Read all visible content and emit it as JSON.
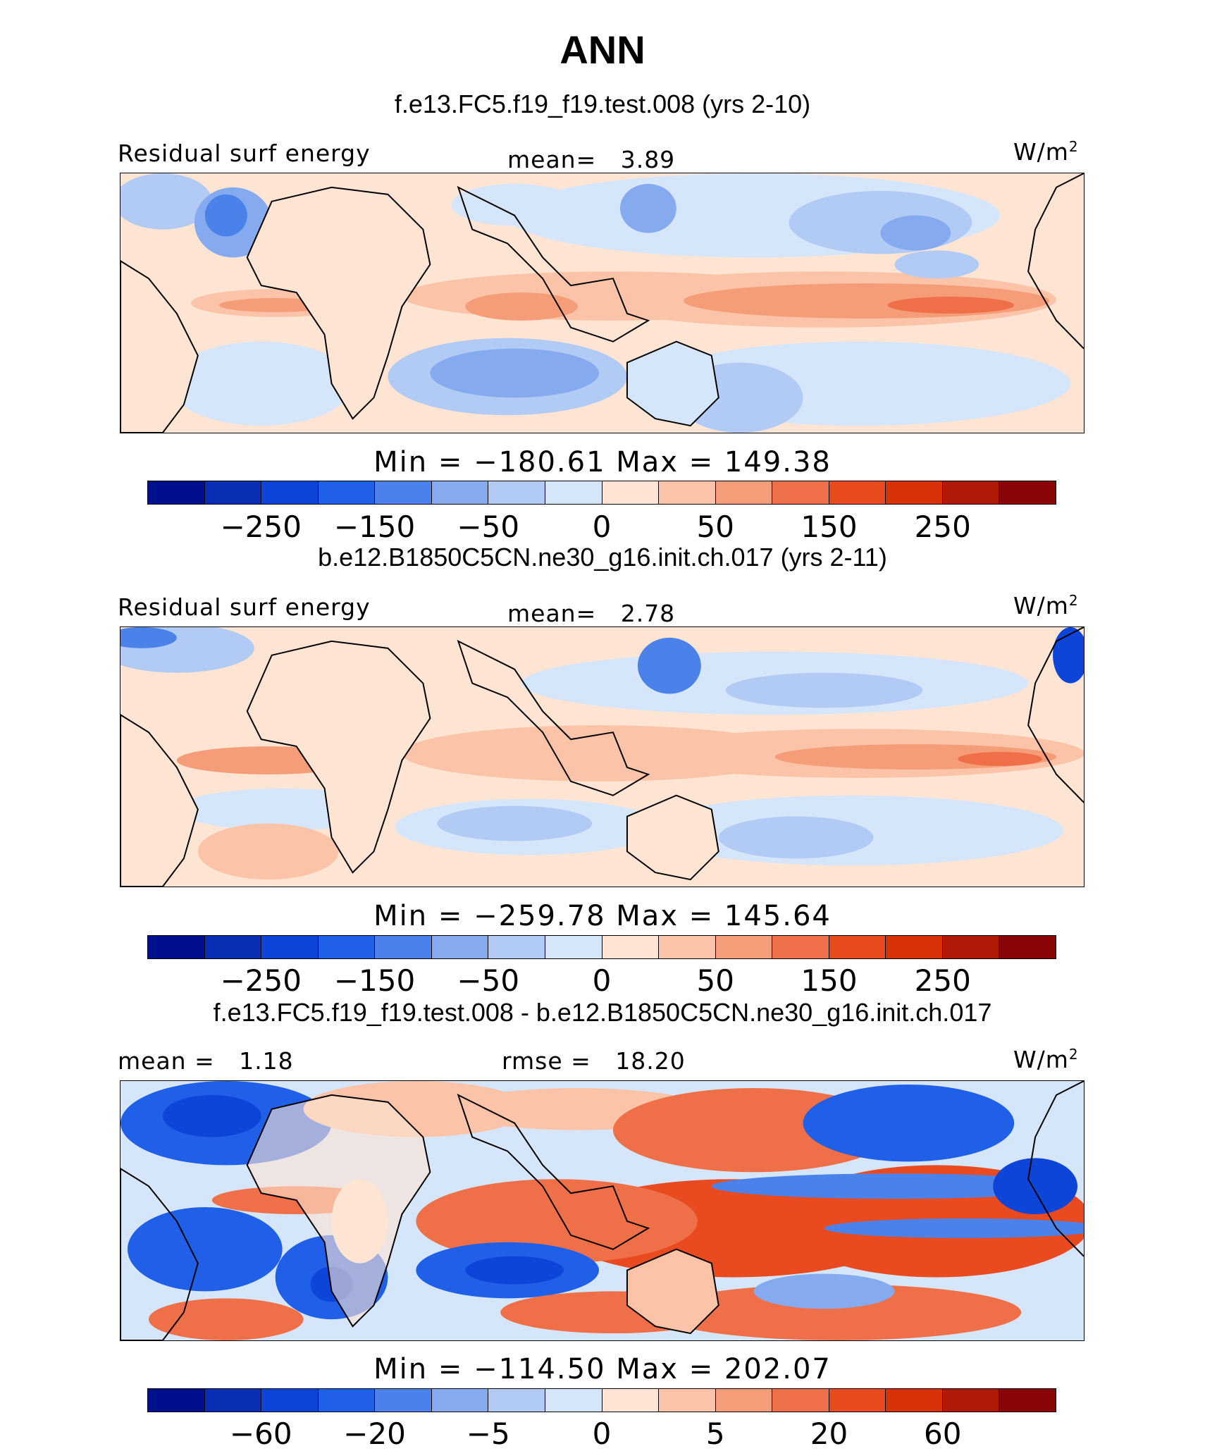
{
  "title": "ANN",
  "colors": {
    "abs": [
      "#00108c",
      "#0a2fb4",
      "#0c45d8",
      "#2060e8",
      "#4b82ea",
      "#86aaf0",
      "#b2cbf5",
      "#d6e6fa",
      "#fde4d3",
      "#fbc3a8",
      "#f59c78",
      "#ef7048",
      "#ea4a20",
      "#d93208",
      "#b01a08",
      "#8a0606"
    ],
    "diff": [
      "#00108c",
      "#0a2fb4",
      "#0c45d8",
      "#2060e8",
      "#4b82ea",
      "#86aaf0",
      "#b2cbf5",
      "#d6e6fa",
      "#fde4d3",
      "#fbc3a8",
      "#f59c78",
      "#ef7048",
      "#ea4a20",
      "#d93208",
      "#b01a08",
      "#8a0606"
    ]
  },
  "panels": [
    {
      "case_title": "f.e13.FC5.f19_f19.test.008 (yrs 2-10)",
      "left_label": "Residual surf energy",
      "center_label": "mean=   3.89",
      "units": "W/m",
      "units_exp": "2",
      "minmax": "Min = −180.61 Max = 149.38",
      "ticks": [
        "−250",
        "−150",
        "−50",
        "0",
        "50",
        "150",
        "250"
      ]
    },
    {
      "case_title": "b.e12.B1850C5CN.ne30_g16.init.ch.017 (yrs 2-11)",
      "left_label": "Residual surf energy",
      "center_label": "mean=   2.78",
      "units": "W/m",
      "units_exp": "2",
      "minmax": "Min = −259.78 Max = 145.64",
      "ticks": [
        "−250",
        "−150",
        "−50",
        "0",
        "50",
        "150",
        "250"
      ]
    },
    {
      "case_title": "f.e13.FC5.f19_f19.test.008 - b.e12.B1850C5CN.ne30_g16.init.ch.017",
      "left_label": "mean =   1.18",
      "center_label": "rmse =   18.20",
      "units": "W/m",
      "units_exp": "2",
      "minmax": "Min = −114.50 Max = 202.07",
      "ticks": [
        "−60",
        "−20",
        "−5",
        "0",
        "5",
        "20",
        "60"
      ]
    }
  ],
  "chart_data": [
    {
      "type": "heatmap",
      "title": "f.e13.FC5.f19_f19.test.008 (yrs 2-10)",
      "variable": "Residual surf energy",
      "units": "W/m2",
      "mean": 3.89,
      "min": -180.61,
      "max": 149.38,
      "colorbar_ticks": [
        -250,
        -150,
        -50,
        0,
        50,
        150,
        250
      ]
    },
    {
      "type": "heatmap",
      "title": "b.e12.B1850C5CN.ne30_g16.init.ch.017 (yrs 2-11)",
      "variable": "Residual surf energy",
      "units": "W/m2",
      "mean": 2.78,
      "min": -259.78,
      "max": 145.64,
      "colorbar_ticks": [
        -250,
        -150,
        -50,
        0,
        50,
        150,
        250
      ]
    },
    {
      "type": "heatmap",
      "title": "f.e13.FC5.f19_f19.test.008 - b.e12.B1850C5CN.ne30_g16.init.ch.017",
      "units": "W/m2",
      "mean": 1.18,
      "rmse": 18.2,
      "min": -114.5,
      "max": 202.07,
      "colorbar_ticks": [
        -60,
        -20,
        -5,
        0,
        5,
        20,
        60
      ]
    }
  ]
}
